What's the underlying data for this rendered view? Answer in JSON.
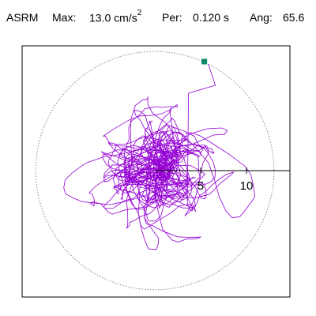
{
  "header": {
    "title": "ASRM",
    "max_label": "Max:",
    "max_value": "13.0 cm/s",
    "max_exponent": "2",
    "per_label": "Per:",
    "per_value": "0.120 s",
    "ang_label": "Ang:",
    "ang_value": "65.6"
  },
  "chart_data": {
    "type": "line",
    "title": "ASRM",
    "x_ticks": [
      5,
      10
    ],
    "x_tick_labels": [
      "5",
      "10"
    ],
    "reference_circle_radius": 13.0,
    "peak_angle_deg": 65.6,
    "peak_magnitude": 13.0,
    "colors": {
      "trace": "#9400d3",
      "marker": "#0c8a6e",
      "axis": "#000000",
      "circle": "#888888"
    },
    "grid": false,
    "marker": {
      "x": 5.4,
      "y": 11.9
    }
  }
}
